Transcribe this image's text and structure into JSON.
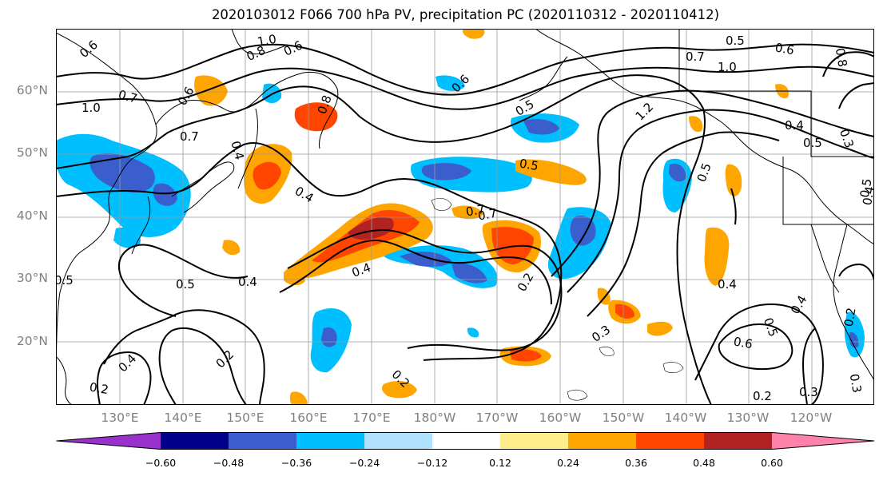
{
  "title": "2020103012 F066 700 hPa PV, precipitation PC (2020110312 - 2020110412)",
  "latitude_labels": [
    {
      "text": "60°N",
      "lat": 60
    },
    {
      "text": "50°N",
      "lat": 50
    },
    {
      "text": "40°N",
      "lat": 40
    },
    {
      "text": "30°N",
      "lat": 30
    },
    {
      "text": "20°N",
      "lat": 20
    }
  ],
  "longitude_labels": [
    {
      "text": "130°E",
      "lon": 130
    },
    {
      "text": "140°E",
      "lon": 140
    },
    {
      "text": "150°E",
      "lon": 150
    },
    {
      "text": "160°E",
      "lon": 160
    },
    {
      "text": "170°E",
      "lon": 170
    },
    {
      "text": "180°W",
      "lon": 180
    },
    {
      "text": "170°W",
      "lon": 190
    },
    {
      "text": "160°W",
      "lon": 200
    },
    {
      "text": "150°W",
      "lon": 210
    },
    {
      "text": "140°W",
      "lon": 220
    },
    {
      "text": "130°W",
      "lon": 230
    },
    {
      "text": "120°W",
      "lon": 240
    }
  ],
  "colorbar": {
    "colors": [
      "#9932cc",
      "#00008b",
      "#3a5fcd",
      "#00bfff",
      "#b0e2ff",
      "#ffffff",
      "#ffec8b",
      "#ffa500",
      "#ff4500",
      "#b22222",
      "#ff82ab"
    ],
    "tick_labels": [
      "−0.60",
      "−0.48",
      "−0.36",
      "−0.24",
      "−0.12",
      "0.12",
      "0.24",
      "0.36",
      "0.48",
      "0.60"
    ]
  },
  "contour_labels": [
    "0.6",
    "1.0",
    "0.8",
    "0.6",
    "0.7",
    "0.6",
    "1.0",
    "0.7",
    "0.7",
    "0.8",
    "0.5",
    "0.4",
    "0.6",
    "0.5",
    "0.7",
    "1.0",
    "0.5",
    "0.6",
    "0.8",
    "1.2",
    "0.4",
    "0.5",
    "0.3",
    "0.5",
    "0.5",
    "0.4",
    "0.7",
    "0.4",
    "0.5",
    "0.4",
    "0.2",
    "0.5",
    "0.4",
    "0.2",
    "0.3",
    "0.4",
    "0.6",
    "0.5",
    "0.4",
    "0.2",
    "0.2",
    "0.3",
    "0.3",
    "0.4",
    "0.2",
    "0.2"
  ]
}
